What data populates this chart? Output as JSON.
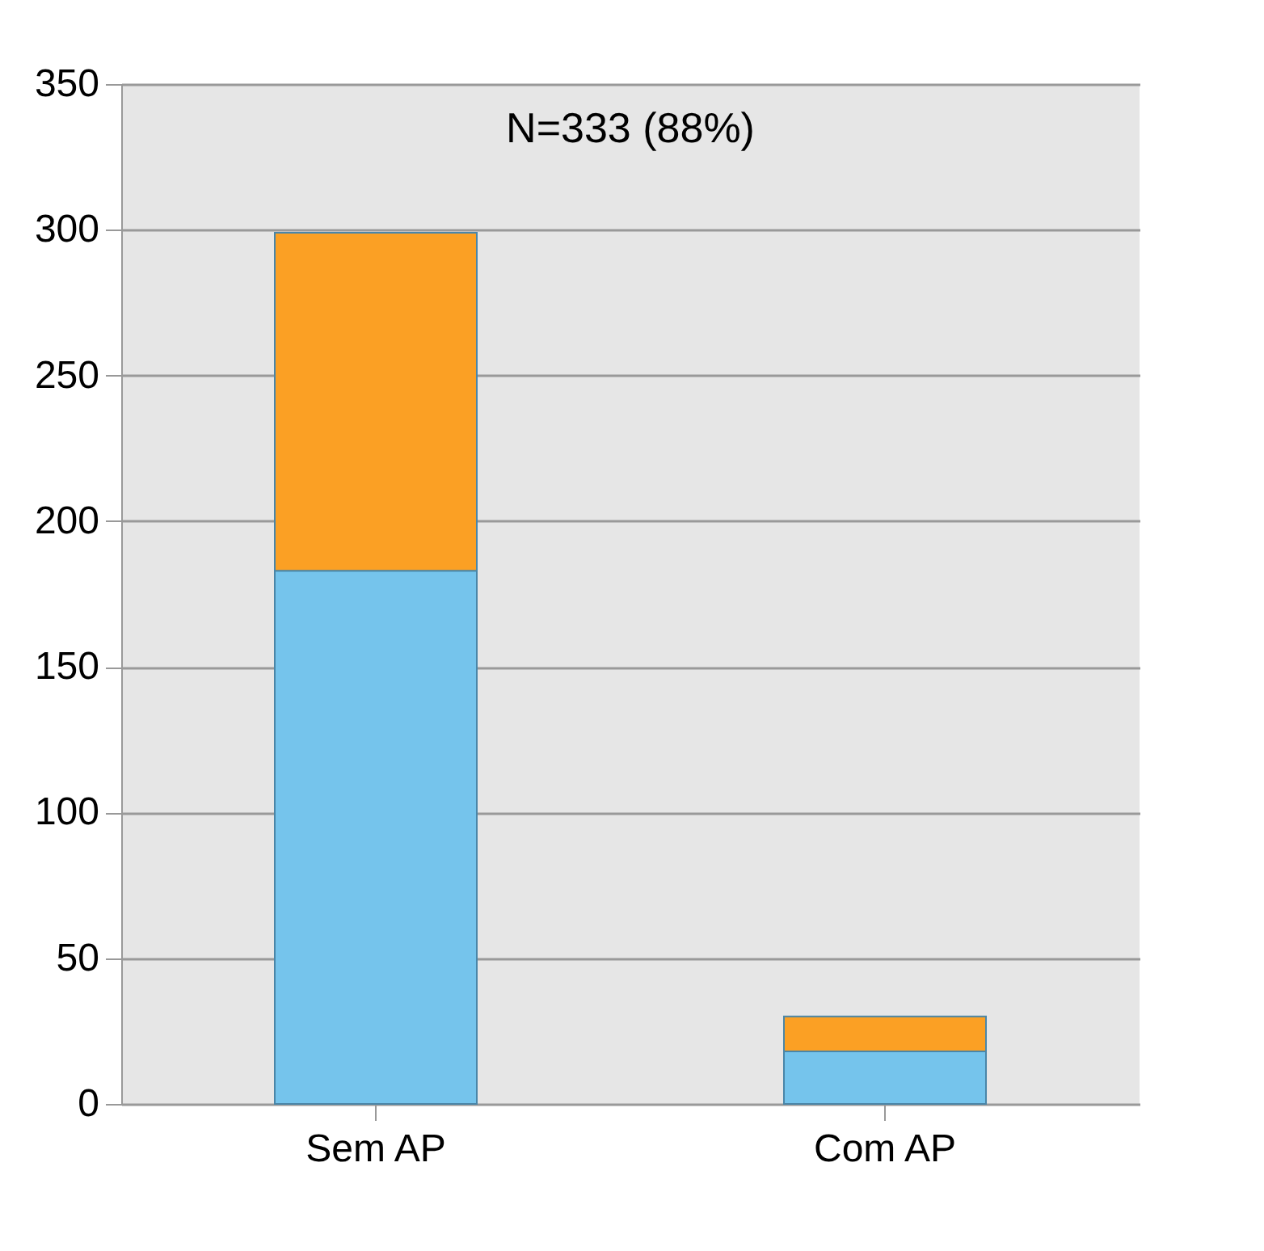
{
  "chart_data": {
    "type": "bar",
    "stacked": true,
    "categories": [
      "Sem AP",
      "Com AP"
    ],
    "series": [
      {
        "color": "#75c4ec",
        "values": [
          183,
          18
        ]
      },
      {
        "color": "#fba024",
        "values": [
          116,
          12
        ]
      }
    ],
    "ylim": [
      0,
      350
    ],
    "yticks": [
      0,
      50,
      100,
      150,
      200,
      250,
      300,
      350
    ],
    "grid": "y",
    "annotations": [
      "N=333 (88%)"
    ]
  }
}
